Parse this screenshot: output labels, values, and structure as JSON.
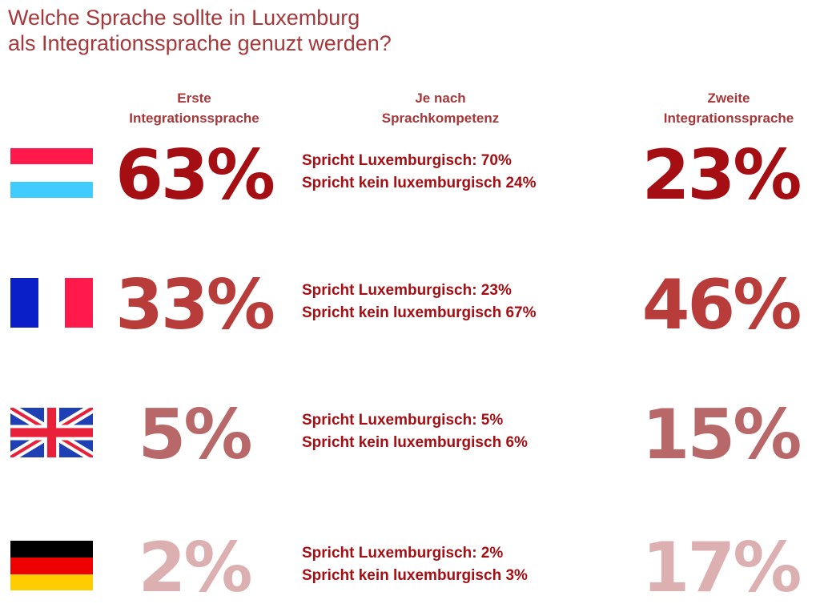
{
  "title_line1": "Welche Sprache sollte in Luxemburg",
  "title_line2": "als Integrationssprache genuzt werden?",
  "columns": {
    "first": {
      "line1": "Erste",
      "line2": "Integrationssprache"
    },
    "middle": {
      "line1": "Je nach",
      "line2": "Sprachkompetenz"
    },
    "second": {
      "line1": "Zweite",
      "line2": "Integrationssprache"
    }
  },
  "rows": [
    {
      "flag": "luxembourg-flag-icon",
      "first": "63%",
      "speaks": "Spricht Luxemburgisch: 70%",
      "not_speaks": "Spricht kein luxemburgisch 24%",
      "second": "23%",
      "first_color": "#a50f14",
      "second_color": "#a50f14"
    },
    {
      "flag": "france-flag-icon",
      "first": "33%",
      "speaks": "Spricht Luxemburgisch: 23%",
      "not_speaks": "Spricht kein luxemburgisch 67%",
      "second": "46%",
      "first_color": "#b83c3a",
      "second_color": "#b83c3a"
    },
    {
      "flag": "uk-flag-icon",
      "first": "5%",
      "speaks": "Spricht Luxemburgisch: 5%",
      "not_speaks": "Spricht kein luxemburgisch 6%",
      "second": "15%",
      "first_color": "#b86868",
      "second_color": "#b86868"
    },
    {
      "flag": "germany-flag-icon",
      "first": "2%",
      "speaks": "Spricht Luxemburgisch: 2%",
      "not_speaks": "Spricht kein luxemburgisch 3%",
      "second": "17%",
      "first_color": "#dcb0b0",
      "second_color": "#dcb0b0"
    }
  ]
}
